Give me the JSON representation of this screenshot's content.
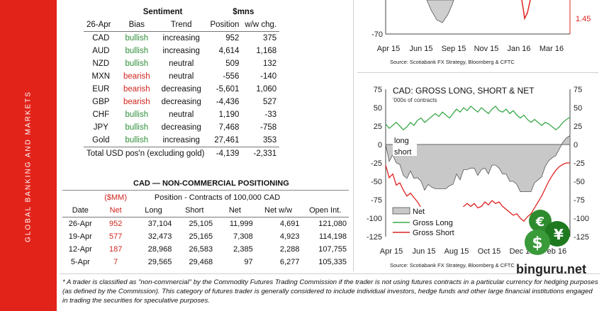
{
  "sidebar": {
    "text": "GLOBAL BANKING AND MARKETS"
  },
  "sentiment": {
    "date": "26-Apr",
    "group1": "Sentiment",
    "group2": "$mns",
    "cols": [
      "Bias",
      "Trend",
      "Position",
      "w/w chg."
    ],
    "rows": [
      {
        "ccy": "CAD",
        "bias": "bullish",
        "trend": "increasing",
        "pos": "952",
        "chg": "375"
      },
      {
        "ccy": "AUD",
        "bias": "bullish",
        "trend": "increasing",
        "pos": "4,614",
        "chg": "1,168"
      },
      {
        "ccy": "NZD",
        "bias": "bullish",
        "trend": "neutral",
        "pos": "509",
        "chg": "132"
      },
      {
        "ccy": "MXN",
        "bias": "bearish",
        "trend": "neutral",
        "pos": "-556",
        "chg": "-140"
      },
      {
        "ccy": "EUR",
        "bias": "bearish",
        "trend": "decreasing",
        "pos": "-5,601",
        "chg": "1,060"
      },
      {
        "ccy": "GBP",
        "bias": "bearish",
        "trend": "decreasing",
        "pos": "-4,436",
        "chg": "527"
      },
      {
        "ccy": "CHF",
        "bias": "bullish",
        "trend": "neutral",
        "pos": "1,190",
        "chg": "-33"
      },
      {
        "ccy": "JPY",
        "bias": "bullish",
        "trend": "decreasing",
        "pos": "7,468",
        "chg": "-758"
      },
      {
        "ccy": "Gold",
        "bias": "bullish",
        "trend": "increasing",
        "pos": "27,461",
        "chg": "353"
      }
    ],
    "total": {
      "label": "Total USD pos'n (excluding gold)",
      "pos": "-4,139",
      "chg": "-2,331"
    }
  },
  "cad_table": {
    "title": "CAD — NON-COMMERCIAL POSITIONING",
    "smm": "($MM)",
    "group": "Position - Contracts of 100,000 CAD",
    "cols": [
      "Date",
      "Net",
      "Long",
      "Short",
      "Net",
      "Net w/w",
      "Open Int."
    ],
    "rows": [
      {
        "date": "26-Apr",
        "net_mm": "952",
        "long": "37,104",
        "short": "25,105",
        "net": "11,999",
        "ww": "4,691",
        "oi": "121,080"
      },
      {
        "date": "19-Apr",
        "net_mm": "577",
        "long": "32,473",
        "short": "25,165",
        "net": "7,308",
        "ww": "4,923",
        "oi": "114,198"
      },
      {
        "date": "12-Apr",
        "net_mm": "187",
        "long": "28,968",
        "short": "26,583",
        "net": "2,385",
        "ww": "2,288",
        "oi": "107,755"
      },
      {
        "date": "5-Apr",
        "net_mm": "7",
        "long": "29,565",
        "short": "29,468",
        "net": "97",
        "ww": "6,277",
        "oi": "105,335"
      }
    ]
  },
  "footnote": "* A trader is classified as \"non-commercial\" by the Commodity Futures Trading Commission if the trader is not using futures contracts in a particular currency for hedging purposes (as defined by the Commission). This category of futures trader is generally considered to include individual investors, hedge funds and other large financial institutions engaged in trading the securities for speculative purposes.",
  "chart_data": [
    {
      "type": "line",
      "partial": true,
      "x_ticks": [
        "Apr 15",
        "Jun 15",
        "Sep 15",
        "Nov 15",
        "Jan 16",
        "Mar 16"
      ],
      "y_left_visible_tick": "-70",
      "y_right_visible_tick": "1.45",
      "source": "Source: Scotiabank FX Strategy, Bloomberg & CFTC"
    },
    {
      "type": "area",
      "title": "CAD: GROSS LONG, SHORT & NET",
      "subtitle": "'000s of contracts",
      "x_ticks": [
        "Apr 15",
        "Jun 15",
        "Aug 15",
        "Oct 15",
        "Dec 15",
        "Feb 16"
      ],
      "ylim": [
        -125,
        75
      ],
      "y_ticks": [
        "75",
        "50",
        "25",
        "0",
        "-25",
        "-50",
        "-75",
        "-100",
        "-125"
      ],
      "annotation": "long\nshort",
      "legend": [
        "Net",
        "Gross Long",
        "Gross Short"
      ],
      "series": [
        {
          "name": "Gross Long",
          "color": "#3aa84a",
          "values": [
            28,
            22,
            26,
            30,
            25,
            20,
            24,
            30,
            26,
            33,
            36,
            30,
            34,
            38,
            42,
            38,
            44,
            40,
            36,
            42,
            48,
            44,
            50,
            46,
            52,
            48,
            44,
            50,
            46,
            42,
            48,
            52,
            46,
            44,
            48,
            42,
            46,
            40,
            36,
            40,
            34,
            30,
            34,
            30,
            26,
            30,
            28,
            24,
            20,
            24,
            30,
            34,
            37
          ]
        },
        {
          "name": "Gross Short",
          "color": "#e02020",
          "values": [
            -28,
            -45,
            -40,
            -55,
            -52,
            -62,
            -70,
            -66,
            -72,
            -78,
            -86,
            -92,
            -88,
            -96,
            -102,
            -98,
            -104,
            -100,
            -92,
            -96,
            -88,
            -92,
            -84,
            -80,
            -84,
            -80,
            -86,
            -84,
            -78,
            -82,
            -76,
            -80,
            -78,
            -84,
            -88,
            -92,
            -96,
            -94,
            -100,
            -104,
            -98,
            -94,
            -86,
            -78,
            -70,
            -60,
            -50,
            -42,
            -35,
            -30,
            -27,
            -25,
            -25
          ]
        },
        {
          "name": "Net",
          "color": "#c8c8c8",
          "values": [
            0,
            -23,
            -14,
            -25,
            -27,
            -42,
            -46,
            -36,
            -46,
            -45,
            -50,
            -62,
            -54,
            -58,
            -60,
            -60,
            -60,
            -60,
            -56,
            -54,
            -40,
            -48,
            -34,
            -34,
            -32,
            -32,
            -42,
            -34,
            -32,
            -40,
            -28,
            -28,
            -32,
            -40,
            -40,
            -50,
            -50,
            -54,
            -64,
            -64,
            -64,
            -64,
            -52,
            -48,
            -44,
            -30,
            -22,
            -18,
            -15,
            -6,
            3,
            9,
            12
          ]
        }
      ],
      "source": "Source: Scotiabank FX Strategy, Bloomberg & CFTC"
    }
  ],
  "logo": {
    "text": "binguru.net",
    "symbols": [
      "€",
      "$",
      "¥"
    ]
  }
}
